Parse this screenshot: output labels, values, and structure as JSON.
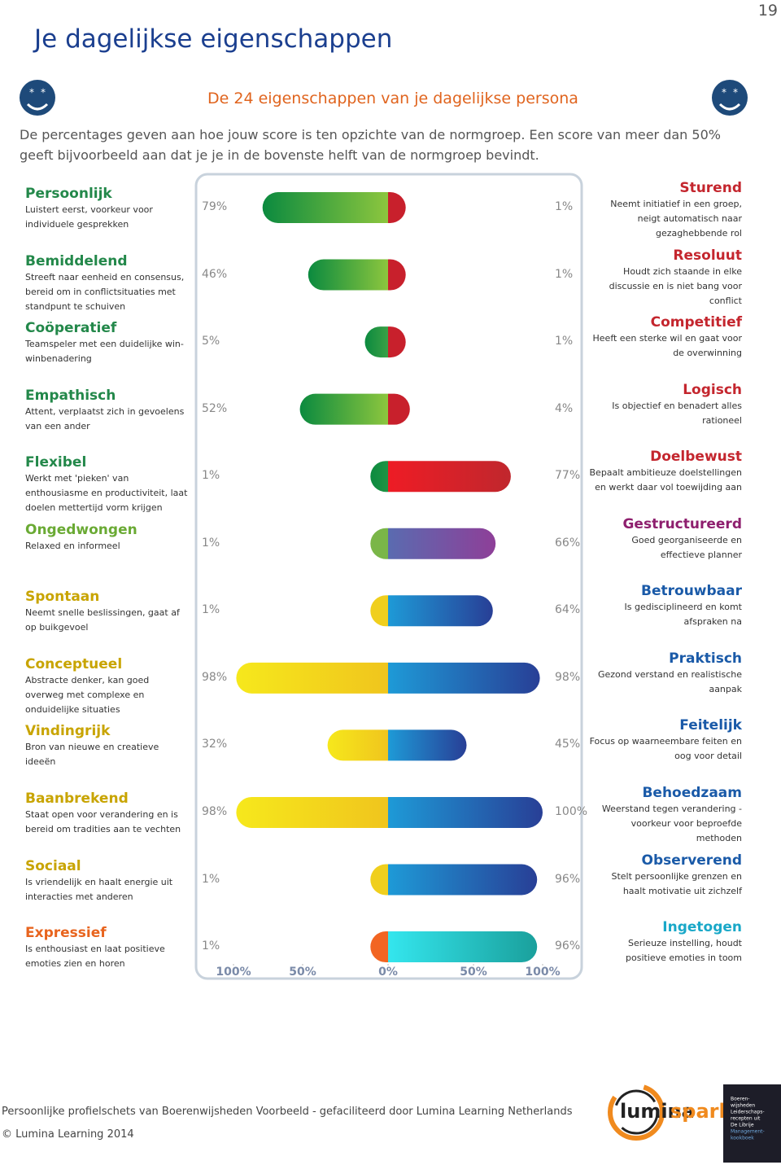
{
  "page_number": "19",
  "title": "Je dagelijkse eigenschappen",
  "subtitle": "De 24 eigenschappen van je dagelijkse persona",
  "intro": "De percentages geven aan hoe jouw score is ten opzichte van de normgroep. Een score van meer dan 50% geeft bijvoorbeeld aan dat je je in de bovenste helft van de normgroep bevindt.",
  "chart_data": {
    "type": "diverging-bar",
    "xlim": [
      -100,
      100
    ],
    "xticks": [
      {
        "value": -100,
        "label": "100%"
      },
      {
        "value": -50,
        "label": "50%"
      },
      {
        "value": 0,
        "label": "0%"
      },
      {
        "value": 50,
        "label": "50%"
      },
      {
        "value": 100,
        "label": "100%"
      }
    ],
    "rows": [
      {
        "left": {
          "name": "Persoonlijk",
          "description": "Luistert eerst, voorkeur voor individuele gesprekken",
          "value": 79,
          "label": "79%",
          "name_color": "#23884a",
          "color": "#0b8a3f",
          "color2": "#8cc63e"
        },
        "right": {
          "name": "Sturend",
          "description": "Neemt initiatief in een groep, neigt automatisch naar gezaghebbende rol",
          "value": 1,
          "label": "1%",
          "name_color": "#c4262e",
          "color": "#c8202c",
          "color2": "#c8202c"
        }
      },
      {
        "left": {
          "name": "Bemiddelend",
          "description": "Streeft naar eenheid en consensus, bereid om in conflictsituaties met standpunt te schuiven",
          "value": 46,
          "label": "46%",
          "name_color": "#23884a",
          "color": "#0b8a3f",
          "color2": "#8cc63e"
        },
        "right": {
          "name": "Resoluut",
          "description": "Houdt zich staande in elke discussie en is niet bang voor conflict",
          "value": 1,
          "label": "1%",
          "name_color": "#c4262e",
          "color": "#c8202c",
          "color2": "#c8202c"
        }
      },
      {
        "left": {
          "name": "Coöperatief",
          "description": "Teamspeler met een duidelijke win-winbenadering",
          "value": 5,
          "label": "5%",
          "name_color": "#23884a",
          "color": "#0b8a3f",
          "color2": "#3aa046"
        },
        "right": {
          "name": "Competitief",
          "description": "Heeft een sterke wil en gaat voor de overwinning",
          "value": 1,
          "label": "1%",
          "name_color": "#c4262e",
          "color": "#c8202c",
          "color2": "#c8202c"
        }
      },
      {
        "left": {
          "name": "Empathisch",
          "description": "Attent, verplaatst zich in gevoelens van een ander",
          "value": 52,
          "label": "52%",
          "name_color": "#23884a",
          "color": "#0b8a3f",
          "color2": "#8cc63e"
        },
        "right": {
          "name": "Logisch",
          "description": "Is objectief en benadert alles rationeel",
          "value": 4,
          "label": "4%",
          "name_color": "#c4262e",
          "color": "#c8202c",
          "color2": "#c8202c"
        }
      },
      {
        "left": {
          "name": "Flexibel",
          "description": "Werkt met 'pieken' van enthousiasme en productiviteit, laat doelen mettertijd vorm krijgen",
          "value": 1,
          "label": "1%",
          "name_color": "#23884a",
          "color": "#0b8a3f",
          "color2": "#1f9444"
        },
        "right": {
          "name": "Doelbewust",
          "description": "Bepaalt ambitieuze doelstellingen en werkt daar vol toewijding aan",
          "value": 77,
          "label": "77%",
          "name_color": "#c4262e",
          "color": "#ee1c25",
          "color2": "#c0272d"
        }
      },
      {
        "left": {
          "name": "Ongedwongen",
          "description": "Relaxed en informeel",
          "value": 1,
          "label": "1%",
          "name_color": "#6aaa34",
          "color": "#7ab648",
          "color2": "#7ab648"
        },
        "right": {
          "name": "Gestructureerd",
          "description": "Goed georganiseerde en effectieve planner",
          "value": 66,
          "label": "66%",
          "name_color": "#8e1f6e",
          "color": "#5a6bb0",
          "color2": "#8e3f98"
        }
      },
      {
        "left": {
          "name": "Spontaan",
          "description": "Neemt snelle beslissingen, gaat af op buikgevoel",
          "value": 1,
          "label": "1%",
          "name_color": "#c8a400",
          "color": "#f0cf1d",
          "color2": "#f0cf1d"
        },
        "right": {
          "name": "Betrouwbaar",
          "description": "Is gedisciplineerd en komt afspraken na",
          "value": 64,
          "label": "64%",
          "name_color": "#1a5aa8",
          "color": "#1e9ad7",
          "color2": "#283f96"
        }
      },
      {
        "left": {
          "name": "Conceptueel",
          "description": "Abstracte denker, kan goed overweg met complexe en onduidelijke situaties",
          "value": 98,
          "label": "98%",
          "name_color": "#c8a400",
          "color": "#f6e81c",
          "color2": "#f0c51d"
        },
        "right": {
          "name": "Praktisch",
          "description": "Gezond verstand en realistische aanpak",
          "value": 98,
          "label": "98%",
          "name_color": "#1a5aa8",
          "color": "#1e9ad7",
          "color2": "#283f96"
        }
      },
      {
        "left": {
          "name": "Vindingrijk",
          "description": "Bron van nieuwe en creatieve ideeën",
          "value": 32,
          "label": "32%",
          "name_color": "#c8a400",
          "color": "#f6e81c",
          "color2": "#f0c51d"
        },
        "right": {
          "name": "Feitelijk",
          "description": "Focus op waarneembare feiten en oog voor detail",
          "value": 45,
          "label": "45%",
          "name_color": "#1a5aa8",
          "color": "#1e9ad7",
          "color2": "#283f96"
        }
      },
      {
        "left": {
          "name": "Baanbrekend",
          "description": "Staat open voor verandering en is bereid om tradities aan te vechten",
          "value": 98,
          "label": "98%",
          "name_color": "#c8a400",
          "color": "#f6e81c",
          "color2": "#f0c51d"
        },
        "right": {
          "name": "Behoedzaam",
          "description": "Weerstand tegen verandering - voorkeur voor beproefde methoden",
          "value": 100,
          "label": "100%",
          "name_color": "#1a5aa8",
          "color": "#1e9ad7",
          "color2": "#283f96"
        }
      },
      {
        "left": {
          "name": "Sociaal",
          "description": "Is vriendelijk en haalt energie uit interacties met anderen",
          "value": 1,
          "label": "1%",
          "name_color": "#c8a400",
          "color": "#f0cf1d",
          "color2": "#f0cf1d"
        },
        "right": {
          "name": "Observerend",
          "description": "Stelt persoonlijke grenzen en haalt motivatie uit zichzelf",
          "value": 96,
          "label": "96%",
          "name_color": "#1a5aa8",
          "color": "#1e9ad7",
          "color2": "#283f96"
        }
      },
      {
        "left": {
          "name": "Expressief",
          "description": "Is enthousiast en laat positieve emoties zien en horen",
          "value": 1,
          "label": "1%",
          "name_color": "#e8641e",
          "color": "#f26522",
          "color2": "#f26522"
        },
        "right": {
          "name": "Ingetogen",
          "description": "Serieuze instelling, houdt positieve emoties in toom",
          "value": 96,
          "label": "96%",
          "name_color": "#1aa8c8",
          "color": "#34e6ee",
          "color2": "#1aa09c"
        }
      }
    ]
  },
  "footer": {
    "text": "Persoonlijke profielschets van Boerenwijsheden Voorbeeld - gefaciliteerd door Lumina Learning Netherlands",
    "copyright": "© Lumina Learning 2014",
    "logo_part1": "lumina",
    "logo_part2": "spark",
    "book": [
      "Boeren-",
      "wijsheden",
      "Leiderschaps-",
      "recepten uit",
      "De Librije",
      "Management-",
      "kookboek"
    ]
  }
}
